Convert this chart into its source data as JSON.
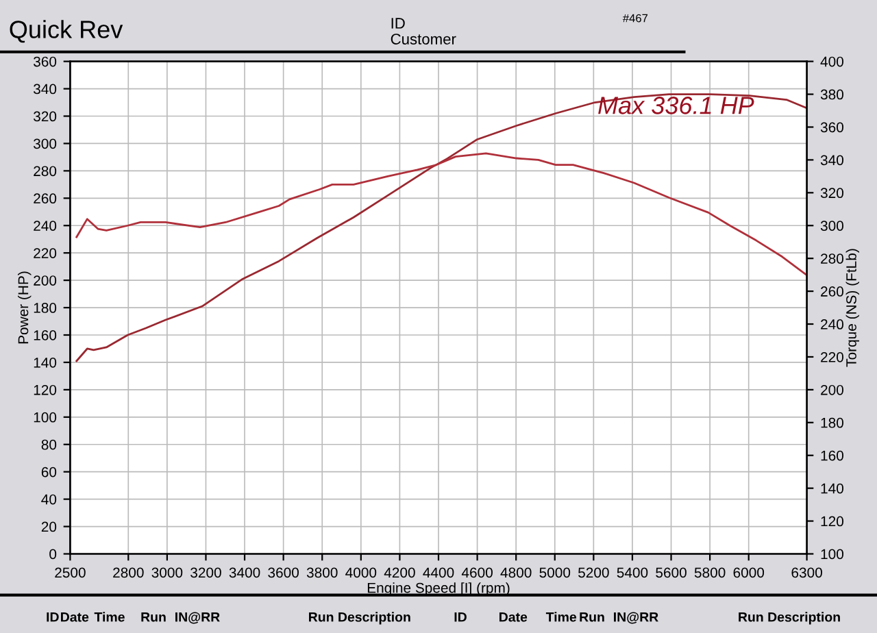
{
  "chart_data": {
    "type": "line",
    "title": "Quick Rev",
    "xlabel": "Engine Speed [I] (rpm)",
    "ylabel": "Power (HP)",
    "y2label": "Torque (NS) (FtLb)",
    "annotations": [
      "ID",
      "Customer",
      "#467",
      "Max 336.1 HP",
      "ID",
      "Date",
      "Time",
      "Run",
      "IN@RR",
      "Run Description",
      "ID",
      "Date",
      "Time",
      "Run",
      "IN@RR",
      "Run Description"
    ],
    "series": [
      {
        "color": "#9a2830",
        "x": [
          2533,
          2588,
          2621,
          2687,
          2797,
          2890,
          2992,
          3181,
          3390,
          3577,
          3775,
          3962,
          4160,
          4358,
          4446,
          4600,
          4802,
          5004,
          5207,
          5409,
          5589,
          5802,
          6004,
          6195,
          6297
        ],
        "values": [
          141,
          150,
          149,
          151,
          160,
          165,
          171,
          181,
          201,
          214,
          231,
          246,
          264,
          282,
          289,
          303,
          313,
          322,
          330,
          334,
          336,
          336,
          335,
          332,
          326
        ]
      },
      {
        "color": "#b0303a",
        "axis": "y2",
        "x": [
          2533,
          2588,
          2643,
          2687,
          2797,
          2863,
          2992,
          3170,
          3302,
          3467,
          3577,
          3632,
          3786,
          3852,
          3962,
          4138,
          4291,
          4390,
          4488,
          4645,
          4802,
          4915,
          5004,
          5094,
          5252,
          5409,
          5589,
          5791,
          5903,
          6038,
          6173,
          6297
        ],
        "values": [
          293,
          304,
          298,
          297,
          300,
          302,
          302,
          299,
          302,
          308,
          312,
          316,
          322,
          325,
          325,
          330,
          334,
          337,
          342,
          344,
          341,
          340,
          337,
          337,
          332,
          326,
          317,
          308,
          300,
          291,
          281,
          270
        ]
      }
    ],
    "xlim": [
      2500,
      6300
    ],
    "xticks": [
      2500,
      2800,
      3000,
      3200,
      3400,
      3600,
      3800,
      4000,
      4200,
      4400,
      4600,
      4800,
      5000,
      5200,
      5400,
      5600,
      5800,
      6000,
      6300
    ],
    "ylim": [
      0,
      360
    ],
    "yticks": [
      0,
      20,
      40,
      60,
      80,
      100,
      120,
      140,
      160,
      180,
      200,
      220,
      240,
      260,
      280,
      300,
      320,
      340,
      360
    ],
    "y2lim": [
      100,
      400
    ],
    "y2ticks": [
      100,
      120,
      140,
      160,
      180,
      200,
      220,
      240,
      260,
      280,
      300,
      320,
      340,
      360,
      380,
      400
    ],
    "grid": true,
    "marker": "none",
    "line_style": "solid"
  }
}
